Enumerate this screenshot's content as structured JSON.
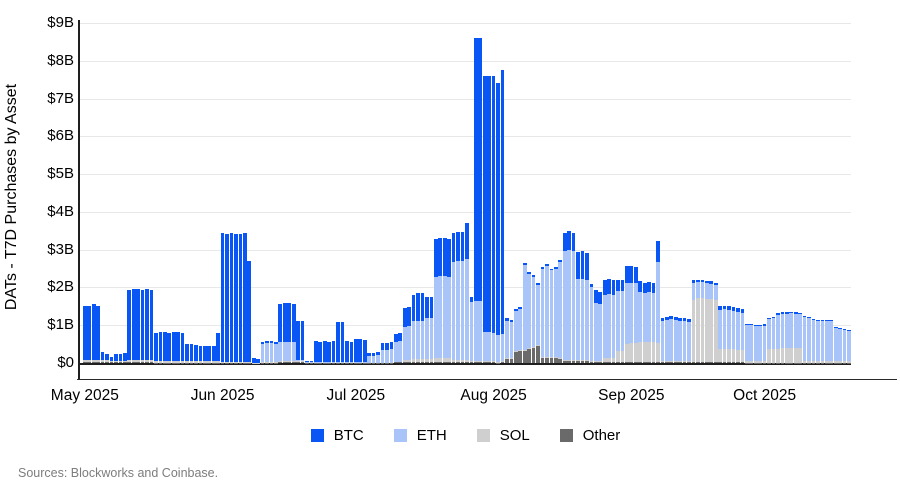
{
  "y_axis": {
    "title": "DATs - T7D Purchases by Asset",
    "ticks": [
      "$0",
      "$1B",
      "$2B",
      "$3B",
      "$4B",
      "$5B",
      "$6B",
      "$7B",
      "$8B",
      "$9B"
    ]
  },
  "x_axis": {
    "ticks": [
      {
        "label": "May 2025",
        "day_index": 0
      },
      {
        "label": "Jun 2025",
        "day_index": 31
      },
      {
        "label": "Jul 2025",
        "day_index": 61
      },
      {
        "label": "Aug 2025",
        "day_index": 92
      },
      {
        "label": "Sep 2025",
        "day_index": 123
      },
      {
        "label": "Oct 2025",
        "day_index": 153
      }
    ]
  },
  "legend": [
    {
      "label": "BTC",
      "color": "#0a56f5"
    },
    {
      "label": "ETH",
      "color": "#a8c4f8"
    },
    {
      "label": "SOL",
      "color": "#cfcfcf"
    },
    {
      "label": "Other",
      "color": "#6a6a6a"
    }
  ],
  "footer": {
    "sources": "Sources: Blockworks and Coinbase."
  },
  "chart_data": {
    "type": "bar",
    "stacked": true,
    "title": "DATs - T7D Purchases by Asset",
    "unit": "USD billions",
    "ylabel": "DATs - T7D Purchases by Asset",
    "ylim": [
      0,
      9
    ],
    "grid": true,
    "legend_position": "bottom",
    "x_start": "2025-05-01",
    "x_frequency": "daily",
    "x_end": "2025-10-20",
    "stack_order_bottom_to_top": [
      "Other",
      "SOL",
      "ETH",
      "BTC"
    ],
    "colors": {
      "BTC": "#0a56f5",
      "ETH": "#a8c4f8",
      "SOL": "#cfcfcf",
      "Other": "#6a6a6a"
    },
    "series": [
      {
        "name": "BTC",
        "values": [
          1.45,
          1.45,
          1.5,
          1.45,
          0.22,
          0.18,
          0.1,
          0.18,
          0.18,
          0.2,
          1.85,
          1.9,
          1.9,
          1.85,
          1.9,
          1.85,
          0.75,
          0.77,
          0.77,
          0.75,
          0.77,
          0.77,
          0.75,
          0.46,
          0.46,
          0.44,
          0.41,
          0.41,
          0.4,
          0.4,
          0.76,
          3.4,
          3.38,
          3.4,
          3.38,
          3.38,
          3.4,
          2.68,
          0.12,
          0.1,
          0.05,
          0.05,
          0.05,
          0.05,
          1.0,
          1.05,
          1.05,
          1.0,
          1.02,
          1.02,
          0.03,
          0.03,
          0.55,
          0.53,
          0.55,
          0.54,
          0.55,
          1.05,
          1.05,
          0.55,
          0.53,
          0.6,
          0.6,
          0.58,
          0.07,
          0.07,
          0.07,
          0.18,
          0.2,
          0.2,
          0.22,
          0.22,
          0.5,
          0.5,
          0.7,
          0.72,
          0.72,
          0.55,
          0.55,
          1.0,
          1.0,
          1.0,
          1.0,
          0.78,
          0.78,
          0.78,
          0.95,
          0.13,
          6.95,
          6.95,
          6.78,
          6.78,
          6.8,
          6.65,
          6.98,
          0.06,
          0.06,
          0.05,
          0.05,
          0.05,
          0.05,
          0.05,
          0.05,
          0.05,
          0.05,
          0.05,
          0.05,
          0.05,
          0.48,
          0.5,
          0.48,
          0.73,
          0.75,
          0.73,
          0.1,
          0.33,
          0.33,
          0.4,
          0.4,
          0.38,
          0.3,
          0.3,
          0.45,
          0.45,
          0.43,
          0.28,
          0.28,
          0.28,
          0.28,
          0.55,
          0.08,
          0.08,
          0.08,
          0.08,
          0.08,
          0.08,
          0.08,
          0.08,
          0.06,
          0.06,
          0.06,
          0.06,
          0.06,
          0.1,
          0.1,
          0.1,
          0.1,
          0.1,
          0.1,
          0.03,
          0.03,
          0.03,
          0.03,
          0.03,
          0.04,
          0.04,
          0.04,
          0.04,
          0.04,
          0.04,
          0.04,
          0.04,
          0.03,
          0.03,
          0.03,
          0.03,
          0.03,
          0.03,
          0.03,
          0.02,
          0.02,
          0.02,
          0.02
        ]
      },
      {
        "name": "ETH",
        "values": [
          0,
          0,
          0,
          0,
          0,
          0,
          0,
          0,
          0,
          0,
          0,
          0,
          0,
          0,
          0,
          0,
          0,
          0,
          0,
          0,
          0,
          0,
          0,
          0,
          0,
          0,
          0,
          0,
          0,
          0,
          0,
          0,
          0,
          0,
          0,
          0,
          0,
          0,
          0,
          0,
          0.48,
          0.5,
          0.5,
          0.48,
          0.5,
          0.5,
          0.5,
          0.5,
          0.03,
          0.03,
          0.01,
          0.01,
          0.01,
          0.01,
          0.01,
          0.01,
          0.01,
          0.02,
          0.02,
          0.01,
          0.01,
          0.02,
          0.02,
          0.02,
          0.18,
          0.18,
          0.2,
          0.33,
          0.33,
          0.35,
          0.53,
          0.55,
          0.88,
          0.9,
          1.0,
          1.02,
          1.02,
          1.1,
          1.1,
          2.15,
          2.18,
          2.18,
          2.15,
          2.6,
          2.62,
          2.62,
          2.68,
          1.58,
          1.6,
          1.6,
          0.78,
          0.78,
          0.75,
          0.72,
          0.73,
          1.0,
          0.95,
          1.05,
          1.1,
          2.25,
          1.95,
          1.85,
          1.6,
          2.33,
          2.4,
          2.3,
          2.35,
          2.55,
          2.9,
          2.92,
          2.9,
          2.15,
          2.15,
          2.12,
          1.95,
          1.55,
          1.5,
          1.68,
          1.7,
          1.68,
          1.6,
          1.58,
          1.6,
          1.6,
          1.58,
          1.33,
          1.3,
          1.32,
          1.3,
          2.15,
          1.05,
          1.08,
          1.1,
          1.08,
          1.05,
          1.05,
          1.02,
          0.45,
          0.43,
          0.42,
          0.42,
          0.4,
          0.4,
          1.03,
          1.05,
          1.03,
          1.0,
          1.0,
          0.98,
          0.95,
          0.95,
          0.93,
          0.93,
          0.95,
          0.8,
          0.82,
          0.9,
          0.92,
          0.92,
          0.93,
          0.92,
          0.9,
          1.15,
          1.12,
          1.08,
          1.06,
          1.06,
          1.05,
          1.05,
          0.88,
          0.85,
          0.83,
          0.8
        ]
      },
      {
        "name": "SOL",
        "values": [
          0.05,
          0.05,
          0.05,
          0.05,
          0.05,
          0.05,
          0.04,
          0.04,
          0.04,
          0.04,
          0.05,
          0.05,
          0.05,
          0.05,
          0.05,
          0.05,
          0.04,
          0.04,
          0.04,
          0.04,
          0.04,
          0.04,
          0.04,
          0.03,
          0.03,
          0.03,
          0.03,
          0.03,
          0.03,
          0.03,
          0.03,
          0.02,
          0.02,
          0.02,
          0.02,
          0.02,
          0.02,
          0.02,
          0.01,
          0.01,
          0.01,
          0.01,
          0.01,
          0.01,
          0.01,
          0.01,
          0.01,
          0.01,
          0.01,
          0.01,
          0,
          0,
          0,
          0,
          0,
          0,
          0,
          0,
          0,
          0,
          0,
          0,
          0,
          0,
          0,
          0,
          0,
          0,
          0,
          0,
          0,
          0,
          0.05,
          0.05,
          0.08,
          0.08,
          0.08,
          0.08,
          0.08,
          0.1,
          0.1,
          0.1,
          0.1,
          0.05,
          0.05,
          0.05,
          0.05,
          0.02,
          0.02,
          0.02,
          0.02,
          0.02,
          0.02,
          0.02,
          0.02,
          0.02,
          0.02,
          0.02,
          0.02,
          0.02,
          0.02,
          0.02,
          0.02,
          0.02,
          0.02,
          0.02,
          0.02,
          0.02,
          0.02,
          0.02,
          0.02,
          0.02,
          0.02,
          0.02,
          0.02,
          0.02,
          0.02,
          0.1,
          0.1,
          0.1,
          0.28,
          0.3,
          0.48,
          0.5,
          0.5,
          0.52,
          0.52,
          0.52,
          0.52,
          0.5,
          0.02,
          0.02,
          0.02,
          0.02,
          0.02,
          0.02,
          0.02,
          1.65,
          1.7,
          1.7,
          1.68,
          1.68,
          1.65,
          0.35,
          0.35,
          0.35,
          0.35,
          0.33,
          0.33,
          0.05,
          0.04,
          0.03,
          0.03,
          0.03,
          0.35,
          0.36,
          0.37,
          0.38,
          0.38,
          0.38,
          0.38,
          0.38,
          0.05,
          0.05,
          0.05,
          0.05,
          0.05,
          0.05,
          0.05,
          0.04,
          0.04,
          0.04,
          0.04
        ]
      },
      {
        "name": "Other",
        "values": [
          0.02,
          0.02,
          0.02,
          0.02,
          0.02,
          0.02,
          0.02,
          0.02,
          0.02,
          0.02,
          0.02,
          0.02,
          0.02,
          0.02,
          0.02,
          0.02,
          0.01,
          0.01,
          0.01,
          0.01,
          0.01,
          0.01,
          0.01,
          0.01,
          0.01,
          0.01,
          0.01,
          0.01,
          0.01,
          0.01,
          0.01,
          0.01,
          0.01,
          0.01,
          0.01,
          0.01,
          0.01,
          0.01,
          0,
          0,
          0.01,
          0.01,
          0.01,
          0.01,
          0.04,
          0.04,
          0.04,
          0.04,
          0.04,
          0.04,
          0.01,
          0.01,
          0.01,
          0.01,
          0.01,
          0.01,
          0.01,
          0.01,
          0.01,
          0.01,
          0.01,
          0.01,
          0.01,
          0.01,
          0.01,
          0.01,
          0.01,
          0.01,
          0.01,
          0.01,
          0.02,
          0.02,
          0.02,
          0.02,
          0.02,
          0.02,
          0.02,
          0.02,
          0.02,
          0.03,
          0.03,
          0.03,
          0.03,
          0.02,
          0.02,
          0.02,
          0.02,
          0.02,
          0.03,
          0.03,
          0.02,
          0.02,
          0.02,
          0.01,
          0.02,
          0.1,
          0.12,
          0.3,
          0.32,
          0.33,
          0.38,
          0.4,
          0.45,
          0.15,
          0.15,
          0.13,
          0.13,
          0.1,
          0.05,
          0.05,
          0.05,
          0.05,
          0.05,
          0.05,
          0.03,
          0.03,
          0.03,
          0.03,
          0.03,
          0.03,
          0.03,
          0.03,
          0.03,
          0.03,
          0.03,
          0.03,
          0.03,
          0.03,
          0.03,
          0.03,
          0.04,
          0.04,
          0.04,
          0.04,
          0.04,
          0.04,
          0.04,
          0.02,
          0.02,
          0.02,
          0.02,
          0.02,
          0.02,
          0.02,
          0.02,
          0.02,
          0.02,
          0.02,
          0.02,
          0.01,
          0.01,
          0.01,
          0.01,
          0.01,
          0.01,
          0.01,
          0.01,
          0.01,
          0.01,
          0.01,
          0.01,
          0.01,
          0.01,
          0.01,
          0.01,
          0.01,
          0.01,
          0.01,
          0.01,
          0.01,
          0.01,
          0.01,
          0.01
        ]
      }
    ]
  }
}
